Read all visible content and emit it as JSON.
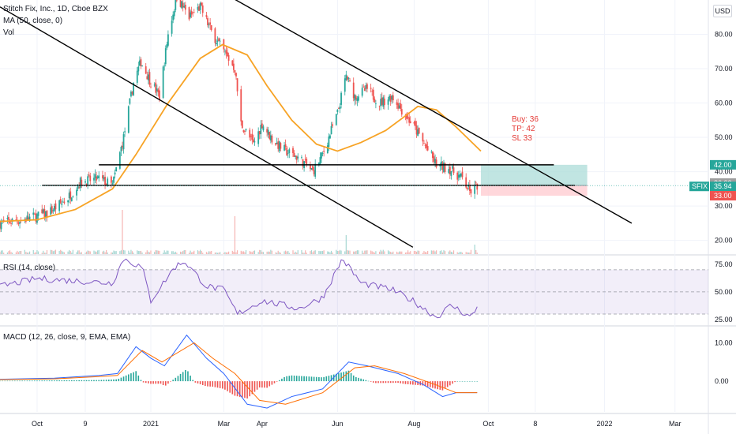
{
  "header": {
    "symbol_title": "Stitch Fix, Inc., 1D, Cboe BZX",
    "ma_label": "MA (50, close, 0)",
    "vol_label": "Vol",
    "currency": "USD"
  },
  "annotation": {
    "buy": "Buy: 36",
    "tp": "TP: 42",
    "sl": "SL 33"
  },
  "colors": {
    "up": "#26a69a",
    "down": "#ef5350",
    "ma": "#f7a325",
    "rsi": "#7e57c2",
    "macd": "#2962ff",
    "signal": "#ff6d00",
    "tp_zone": "#b2dfdb",
    "sl_zone": "#ffcdd2"
  },
  "chart_data": [
    {
      "type": "candlestick",
      "title": "Stitch Fix, Inc., 1D, Cboe BZX",
      "ylim": [
        16,
        90
      ],
      "y_ticks": [
        20.0,
        30.0,
        40.0,
        50.0,
        60.0,
        70.0,
        80.0
      ],
      "x_tick_labels": [
        "Oct",
        "9",
        "2021",
        "Mar",
        "Apr",
        "Jun",
        "Aug",
        "Oct",
        "8",
        "2022",
        "Mar"
      ],
      "x_tick_dates": [
        "2020-10-01",
        "2020-11-09",
        "2021-01-01",
        "2021-03-01",
        "2021-04-01",
        "2021-06-01",
        "2021-08-02",
        "2021-10-01",
        "2021-11-08",
        "2022-01-03",
        "2022-03-01"
      ],
      "x_range": [
        "2020-09-01",
        "2022-03-28"
      ],
      "price_path": [
        [
          "2020-09-01",
          25
        ],
        [
          "2020-09-20",
          26
        ],
        [
          "2020-10-10",
          28
        ],
        [
          "2020-10-25",
          32
        ],
        [
          "2020-11-05",
          37
        ],
        [
          "2020-11-20",
          38
        ],
        [
          "2020-12-01",
          36
        ],
        [
          "2020-12-10",
          50
        ],
        [
          "2020-12-18",
          66
        ],
        [
          "2020-12-24",
          72
        ],
        [
          "2021-01-01",
          66
        ],
        [
          "2021-01-08",
          62
        ],
        [
          "2021-01-15",
          80
        ],
        [
          "2021-01-22",
          91
        ],
        [
          "2021-02-01",
          85
        ],
        [
          "2021-02-10",
          88
        ],
        [
          "2021-02-20",
          80
        ],
        [
          "2021-03-01",
          75
        ],
        [
          "2021-03-10",
          70
        ],
        [
          "2021-03-15",
          54
        ],
        [
          "2021-03-25",
          48
        ],
        [
          "2021-04-01",
          54
        ],
        [
          "2021-04-10",
          49
        ],
        [
          "2021-04-20",
          46
        ],
        [
          "2021-05-01",
          44
        ],
        [
          "2021-05-12",
          40
        ],
        [
          "2021-05-20",
          45
        ],
        [
          "2021-06-01",
          57
        ],
        [
          "2021-06-08",
          68
        ],
        [
          "2021-06-15",
          62
        ],
        [
          "2021-06-25",
          64
        ],
        [
          "2021-07-05",
          60
        ],
        [
          "2021-07-15",
          62
        ],
        [
          "2021-07-25",
          57
        ],
        [
          "2021-08-02",
          53
        ],
        [
          "2021-08-10",
          48
        ],
        [
          "2021-08-20",
          42
        ],
        [
          "2021-08-30",
          41
        ],
        [
          "2021-09-10",
          38
        ],
        [
          "2021-09-16",
          34
        ],
        [
          "2021-09-22",
          35.94
        ]
      ],
      "last_price": {
        "label": "SFIX",
        "value": 35.94
      },
      "moving_average": {
        "name": "MA (50, close, 0)",
        "points": [
          [
            "2020-09-01",
            25.5
          ],
          [
            "2020-10-01",
            26
          ],
          [
            "2020-11-01",
            29
          ],
          [
            "2020-12-01",
            35
          ],
          [
            "2020-12-20",
            45
          ],
          [
            "2021-01-15",
            60
          ],
          [
            "2021-02-10",
            73
          ],
          [
            "2021-02-28",
            77
          ],
          [
            "2021-03-20",
            74
          ],
          [
            "2021-04-05",
            65
          ],
          [
            "2021-04-25",
            55
          ],
          [
            "2021-05-15",
            48
          ],
          [
            "2021-06-01",
            46
          ],
          [
            "2021-06-20",
            48.5
          ],
          [
            "2021-07-10",
            52
          ],
          [
            "2021-07-25",
            56
          ],
          [
            "2021-08-05",
            59
          ],
          [
            "2021-08-20",
            58
          ],
          [
            "2021-09-05",
            53
          ],
          [
            "2021-09-25",
            46
          ]
        ]
      },
      "trendlines": [
        {
          "points": [
            [
              "2020-09-01",
              88
            ],
            [
              "2021-08-01",
              18
            ]
          ]
        },
        {
          "points": [
            [
              "2021-03-01",
              92
            ],
            [
              "2022-01-25",
              25
            ]
          ]
        }
      ],
      "horizontal_lines": [
        {
          "y": 42,
          "from": "2020-11-20",
          "to": "2021-11-23"
        },
        {
          "y": 36,
          "from": "2020-10-05",
          "to": "2021-12-10"
        }
      ],
      "position": {
        "entry": 36,
        "target": 42,
        "stop": 33,
        "from": "2021-09-25",
        "to": "2021-12-20"
      },
      "price_labels": [
        42.0,
        36.0,
        35.94,
        33.0
      ],
      "volume": {
        "name": "Vol",
        "spikes": [
          [
            "2020-12-09",
            14
          ],
          [
            "2021-03-10",
            12
          ],
          [
            "2021-06-08",
            6
          ],
          [
            "2021-09-20",
            3
          ]
        ]
      }
    },
    {
      "type": "line",
      "title": "RSI (14, close)",
      "ylim": [
        20,
        82
      ],
      "y_ticks": [
        25.0,
        50.0,
        75.0
      ],
      "levels": [
        70,
        30
      ],
      "points": [
        [
          "2020-09-01",
          55
        ],
        [
          "2020-10-01",
          62
        ],
        [
          "2020-11-01",
          60
        ],
        [
          "2020-12-01",
          58
        ],
        [
          "2020-12-10",
          80
        ],
        [
          "2020-12-25",
          72
        ],
        [
          "2021-01-01",
          42
        ],
        [
          "2021-01-20",
          72
        ],
        [
          "2021-01-28",
          78
        ],
        [
          "2021-02-15",
          55
        ],
        [
          "2021-03-01",
          52
        ],
        [
          "2021-03-12",
          30
        ],
        [
          "2021-04-01",
          42
        ],
        [
          "2021-05-01",
          35
        ],
        [
          "2021-05-20",
          45
        ],
        [
          "2021-06-05",
          80
        ],
        [
          "2021-06-20",
          58
        ],
        [
          "2021-07-15",
          52
        ],
        [
          "2021-08-01",
          42
        ],
        [
          "2021-08-20",
          27
        ],
        [
          "2021-09-01",
          38
        ],
        [
          "2021-09-17",
          27
        ],
        [
          "2021-09-22",
          36
        ]
      ]
    },
    {
      "type": "line",
      "title": "MACD (12, 26, close, 9, EMA, EMA)",
      "ylim": [
        -8,
        14
      ],
      "y_ticks": [
        0.0,
        10.0
      ],
      "series": [
        {
          "name": "MACD",
          "points": [
            [
              "2020-09-01",
              0.5
            ],
            [
              "2020-10-15",
              0.8
            ],
            [
              "2020-11-20",
              1.5
            ],
            [
              "2020-12-05",
              2
            ],
            [
              "2020-12-20",
              9
            ],
            [
              "2021-01-01",
              6
            ],
            [
              "2021-01-12",
              4
            ],
            [
              "2021-01-30",
              12
            ],
            [
              "2021-02-15",
              6
            ],
            [
              "2021-03-01",
              2
            ],
            [
              "2021-03-20",
              -6
            ],
            [
              "2021-04-05",
              -7
            ],
            [
              "2021-04-25",
              -4
            ],
            [
              "2021-05-20",
              -2
            ],
            [
              "2021-06-10",
              5
            ],
            [
              "2021-06-25",
              4
            ],
            [
              "2021-07-20",
              2
            ],
            [
              "2021-08-10",
              -1
            ],
            [
              "2021-08-25",
              -4
            ],
            [
              "2021-09-05",
              -3
            ],
            [
              "2021-09-22",
              -3
            ]
          ]
        },
        {
          "name": "Signal",
          "points": [
            [
              "2020-09-01",
              0.4
            ],
            [
              "2020-10-15",
              0.6
            ],
            [
              "2020-11-20",
              1.2
            ],
            [
              "2020-12-05",
              1.5
            ],
            [
              "2020-12-25",
              8
            ],
            [
              "2021-01-10",
              5
            ],
            [
              "2021-02-05",
              10
            ],
            [
              "2021-02-20",
              6
            ],
            [
              "2021-03-10",
              2
            ],
            [
              "2021-03-30",
              -5
            ],
            [
              "2021-04-20",
              -6
            ],
            [
              "2021-05-20",
              -3
            ],
            [
              "2021-06-15",
              3.5
            ],
            [
              "2021-07-01",
              4
            ],
            [
              "2021-07-25",
              2
            ],
            [
              "2021-08-20",
              -1
            ],
            [
              "2021-09-05",
              -3
            ],
            [
              "2021-09-22",
              -3
            ]
          ]
        }
      ]
    }
  ]
}
